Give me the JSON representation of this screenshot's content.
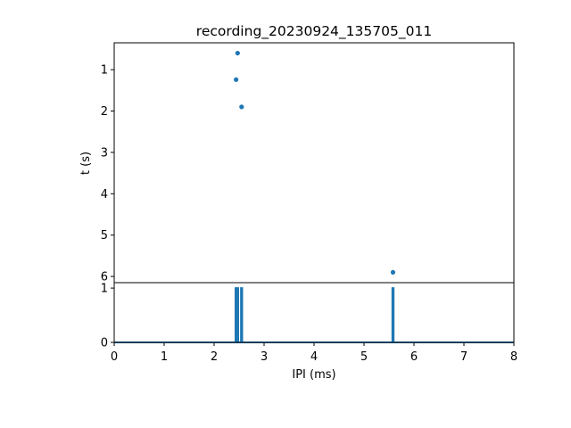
{
  "chart_data": [
    {
      "type": "scatter",
      "title": "recording_20230924_135705_011",
      "ylabel": "t (s)",
      "xlim": [
        0,
        8
      ],
      "ylim": [
        6.15,
        0.35
      ],
      "y_inverted": true,
      "yticks": [
        1,
        2,
        3,
        4,
        5,
        6
      ],
      "grid": false,
      "color": "#1f77b4",
      "points": [
        {
          "x": 2.47,
          "y": 0.6
        },
        {
          "x": 2.44,
          "y": 1.24
        },
        {
          "x": 2.55,
          "y": 1.9
        },
        {
          "x": 5.58,
          "y": 5.9
        }
      ]
    },
    {
      "type": "line",
      "xlabel": "IPI (ms)",
      "xlim": [
        0,
        8
      ],
      "ylim": [
        0,
        1.1
      ],
      "xticks": [
        0,
        1,
        2,
        3,
        4,
        5,
        6,
        7,
        8
      ],
      "yticks": [
        0,
        1
      ],
      "grid": false,
      "color": "#1f77b4",
      "spikes": [
        {
          "x": 2.44,
          "y": 1
        },
        {
          "x": 2.47,
          "y": 1
        },
        {
          "x": 2.55,
          "y": 1
        },
        {
          "x": 5.58,
          "y": 1
        }
      ]
    }
  ]
}
